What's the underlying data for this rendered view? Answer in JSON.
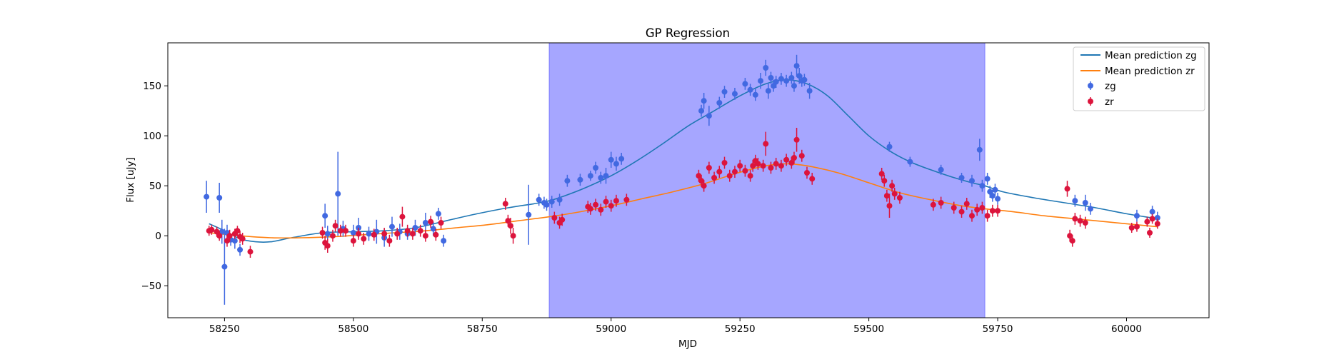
{
  "chart_data": {
    "type": "scatter",
    "title": "GP Regression",
    "xlabel": "MJD",
    "ylabel": "Flux [uJy]",
    "xlim": [
      58140,
      60160
    ],
    "ylim": [
      -82,
      193
    ],
    "xticks": [
      58250,
      58500,
      58750,
      59000,
      59250,
      59500,
      59750,
      60000
    ],
    "yticks": [
      -50,
      0,
      50,
      100,
      150
    ],
    "grid": false,
    "legend_position": "top-right",
    "shaded_region": {
      "x": [
        58880,
        59725
      ],
      "color": "#a6a6ff"
    },
    "lines": [
      {
        "name": "Mean prediction zg",
        "color": "#1f77b4",
        "x": [
          58220,
          58250,
          58280,
          58310,
          58340,
          58380,
          58440,
          58500,
          58560,
          58620,
          58680,
          58740,
          58800,
          58850,
          58880,
          58910,
          58950,
          59000,
          59050,
          59100,
          59150,
          59200,
          59250,
          59300,
          59340,
          59380,
          59420,
          59460,
          59500,
          59540,
          59580,
          59620,
          59660,
          59700,
          59725,
          59760,
          59820,
          59880,
          59940,
          60000,
          60060
        ],
        "y": [
          12,
          5,
          -3,
          -6,
          -6,
          -2,
          3,
          4,
          5,
          8,
          15,
          22,
          28,
          32,
          35,
          40,
          48,
          60,
          75,
          92,
          110,
          125,
          140,
          152,
          156,
          152,
          140,
          120,
          100,
          85,
          74,
          66,
          59,
          53,
          50,
          44,
          38,
          33,
          28,
          22,
          17
        ]
      },
      {
        "name": "Mean prediction zr",
        "color": "#ff7f0e",
        "x": [
          58220,
          58280,
          58340,
          58400,
          58460,
          58520,
          58580,
          58640,
          58700,
          58760,
          58820,
          58880,
          58940,
          59000,
          59060,
          59120,
          59180,
          59240,
          59300,
          59340,
          59380,
          59440,
          59500,
          59560,
          59620,
          59680,
          59725,
          59780,
          59840,
          59900,
          59960,
          60020,
          60060
        ],
        "y": [
          3,
          0,
          -2,
          -2,
          -1,
          1,
          3,
          5,
          8,
          11,
          15,
          19,
          24,
          30,
          37,
          44,
          52,
          62,
          70,
          72,
          70,
          63,
          53,
          43,
          36,
          30,
          27,
          24,
          20,
          17,
          14,
          11,
          9
        ]
      }
    ],
    "series": [
      {
        "name": "zg",
        "color": "#4169e1",
        "x": [
          58215,
          58240,
          58245,
          58250,
          58255,
          58262,
          58270,
          58280,
          58445,
          58450,
          58470,
          58480,
          58500,
          58510,
          58530,
          58545,
          58560,
          58575,
          58590,
          58605,
          58620,
          58640,
          58655,
          58665,
          58675,
          58840,
          58860,
          58870,
          58875,
          58885,
          58900,
          58915,
          58940,
          58960,
          58970,
          58980,
          58990,
          59000,
          59010,
          59020,
          59175,
          59180,
          59190,
          59210,
          59220,
          59240,
          59260,
          59270,
          59280,
          59290,
          59300,
          59305,
          59310,
          59315,
          59320,
          59330,
          59340,
          59350,
          59355,
          59360,
          59365,
          59370,
          59375,
          59385,
          59540,
          59580,
          59640,
          59680,
          59700,
          59715,
          59720,
          59730,
          59735,
          59740,
          59745,
          59750,
          59900,
          59920,
          59930,
          60020,
          60050,
          60060
        ],
        "y": [
          39,
          38,
          4,
          -31,
          3,
          -4,
          -5,
          -14,
          20,
          2,
          42,
          7,
          3,
          8,
          2,
          4,
          -2,
          9,
          4,
          2,
          8,
          13,
          7,
          22,
          -5,
          21,
          36,
          33,
          31,
          34,
          36,
          55,
          56,
          60,
          68,
          58,
          60,
          76,
          72,
          77,
          125,
          135,
          120,
          133,
          144,
          142,
          152,
          146,
          141,
          155,
          168,
          145,
          158,
          150,
          154,
          157,
          155,
          158,
          150,
          170,
          160,
          155,
          156,
          145,
          89,
          74,
          66,
          58,
          55,
          86,
          50,
          57,
          44,
          40,
          46,
          37,
          35,
          33,
          27,
          20,
          24,
          18
        ],
        "err": [
          16,
          15,
          12,
          38,
          8,
          6,
          8,
          6,
          12,
          8,
          42,
          8,
          8,
          10,
          7,
          12,
          9,
          10,
          8,
          6,
          8,
          10,
          7,
          6,
          6,
          30,
          6,
          6,
          6,
          6,
          6,
          6,
          6,
          5,
          6,
          6,
          8,
          8,
          7,
          6,
          6,
          8,
          10,
          6,
          6,
          6,
          6,
          6,
          6,
          8,
          8,
          8,
          6,
          6,
          6,
          6,
          6,
          6,
          6,
          11,
          8,
          6,
          6,
          8,
          5,
          5,
          5,
          5,
          6,
          11,
          6,
          6,
          6,
          6,
          6,
          6,
          6,
          8,
          6,
          6,
          6,
          6
        ]
      },
      {
        "name": "zr",
        "color": "#dc143c",
        "x": [
          58220,
          58225,
          58235,
          58240,
          58255,
          58260,
          58270,
          58275,
          58280,
          58285,
          58300,
          58440,
          58445,
          58450,
          58460,
          58465,
          58475,
          58485,
          58500,
          58510,
          58520,
          58540,
          58560,
          58570,
          58585,
          58595,
          58605,
          58615,
          58630,
          58640,
          58650,
          58660,
          58670,
          58795,
          58800,
          58805,
          58810,
          58890,
          58900,
          58905,
          58955,
          58960,
          58970,
          58980,
          58990,
          59000,
          59010,
          59030,
          59170,
          59175,
          59180,
          59190,
          59200,
          59210,
          59220,
          59230,
          59240,
          59250,
          59260,
          59270,
          59275,
          59280,
          59285,
          59295,
          59300,
          59310,
          59320,
          59330,
          59340,
          59350,
          59355,
          59360,
          59370,
          59380,
          59390,
          59525,
          59530,
          59535,
          59540,
          59545,
          59550,
          59560,
          59625,
          59640,
          59665,
          59680,
          59690,
          59700,
          59710,
          59720,
          59730,
          59740,
          59750,
          59885,
          59890,
          59895,
          59900,
          59910,
          59920,
          60010,
          60020,
          60040,
          60045,
          60050,
          60060
        ],
        "y": [
          5,
          6,
          4,
          0,
          -5,
          0,
          2,
          5,
          -1,
          -3,
          -16,
          3,
          -7,
          -10,
          0,
          10,
          5,
          5,
          -5,
          2,
          -3,
          1,
          2,
          -5,
          2,
          19,
          5,
          2,
          5,
          0,
          14,
          1,
          13,
          32,
          15,
          10,
          0,
          18,
          13,
          16,
          29,
          27,
          31,
          26,
          34,
          30,
          35,
          36,
          60,
          55,
          50,
          68,
          58,
          64,
          73,
          60,
          64,
          70,
          65,
          60,
          70,
          75,
          72,
          70,
          92,
          68,
          72,
          70,
          76,
          73,
          78,
          96,
          80,
          63,
          57,
          62,
          55,
          40,
          30,
          50,
          42,
          38,
          31,
          33,
          28,
          24,
          32,
          20,
          26,
          28,
          20,
          25,
          25,
          47,
          0,
          -5,
          17,
          15,
          13,
          8,
          9,
          14,
          3,
          17,
          12
        ],
        "err": [
          5,
          5,
          5,
          5,
          6,
          6,
          5,
          5,
          6,
          6,
          6,
          6,
          7,
          7,
          6,
          6,
          6,
          6,
          6,
          6,
          6,
          6,
          6,
          6,
          6,
          10,
          6,
          6,
          6,
          6,
          6,
          6,
          6,
          6,
          6,
          8,
          8,
          6,
          6,
          6,
          6,
          6,
          6,
          6,
          6,
          6,
          6,
          6,
          6,
          6,
          6,
          6,
          6,
          6,
          6,
          6,
          6,
          6,
          6,
          6,
          6,
          6,
          6,
          6,
          12,
          6,
          6,
          6,
          6,
          6,
          6,
          12,
          6,
          6,
          6,
          6,
          6,
          6,
          12,
          6,
          6,
          6,
          6,
          6,
          6,
          6,
          6,
          6,
          6,
          6,
          6,
          6,
          6,
          8,
          6,
          6,
          6,
          6,
          6,
          5,
          5,
          5,
          5,
          5,
          5
        ]
      }
    ]
  }
}
